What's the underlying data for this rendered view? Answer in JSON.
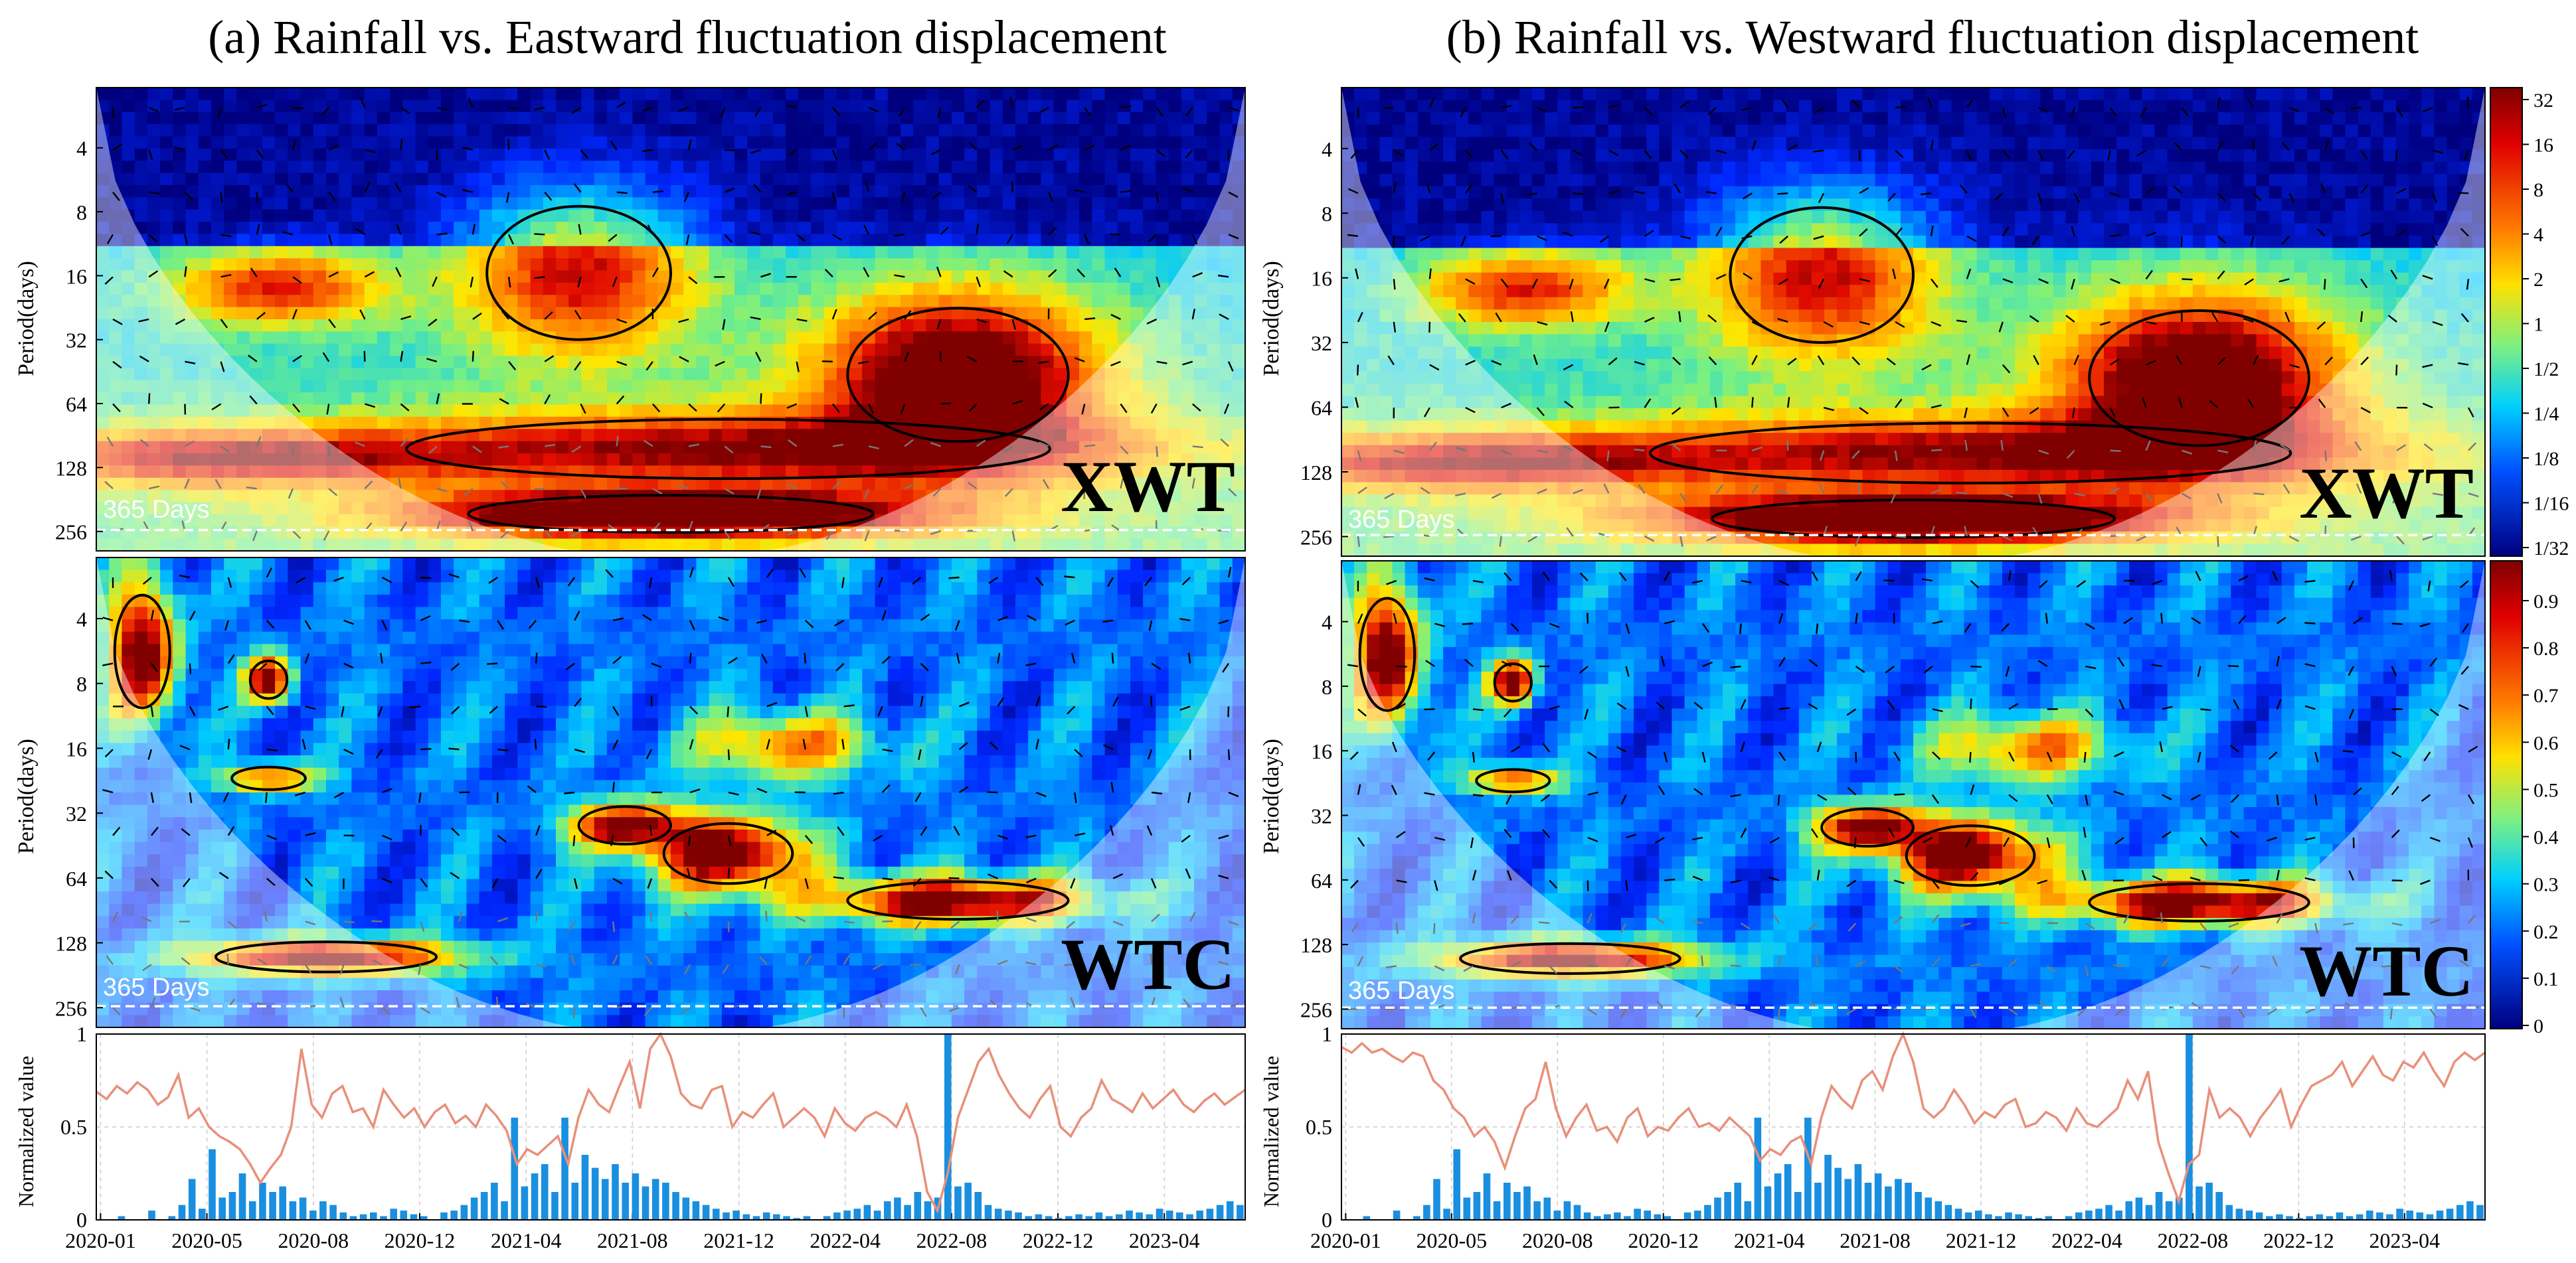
{
  "figure": {
    "panels": [
      {
        "title": "(a) Rainfall vs. Eastward fluctuation displacement",
        "xwt_label": "XWT",
        "wtc_label": "WTC",
        "marker_label": "365 Days",
        "ylabel_period": "Period(days)",
        "ylabel_norm": "Normalized value"
      },
      {
        "title": "(b) Rainfall vs. Westward fluctuation displacement",
        "xwt_label": "XWT",
        "wtc_label": "WTC",
        "marker_label": "365 Days",
        "ylabel_period": "Period(days)",
        "ylabel_norm": "Normalized value"
      }
    ],
    "period_ticks": [
      "4",
      "8",
      "16",
      "32",
      "64",
      "128",
      "256"
    ],
    "norm_ticks": [
      "0",
      "0.5",
      "1"
    ],
    "date_ticks": [
      "2020-01",
      "2020-05",
      "2020-08",
      "2020-12",
      "2021-04",
      "2021-08",
      "2021-12",
      "2022-04",
      "2022-08",
      "2022-12",
      "2023-04"
    ],
    "colorbar_xwt_ticks": [
      "32",
      "16",
      "8",
      "4",
      "2",
      "1",
      "1/2",
      "1/4",
      "1/8",
      "1/16",
      "1/32"
    ],
    "colorbar_wtc_ticks": [
      "0.9",
      "0.8",
      "0.7",
      "0.6",
      "0.5",
      "0.4",
      "0.3",
      "0.2",
      "0.1",
      "0"
    ],
    "colors": {
      "rainfall_bars": "#1a8fe0",
      "displacement_line": "#e8907a",
      "contour": "#000000",
      "coi_fill": "#ffffff",
      "marker_line": "#ffffff"
    }
  },
  "chart_data": [
    {
      "type": "line",
      "panel": "a-bottom",
      "x_label": "",
      "y_label": "Normalized value",
      "x_ticks": [
        "2020-01",
        "2020-05",
        "2020-08",
        "2020-12",
        "2021-04",
        "2021-08",
        "2021-12",
        "2022-04",
        "2022-08",
        "2022-12",
        "2023-04"
      ],
      "ylim": [
        0,
        1
      ],
      "series": [
        {
          "style": "line",
          "values": [
            0.69,
            0.65,
            0.72,
            0.68,
            0.74,
            0.7,
            0.62,
            0.66,
            0.78,
            0.55,
            0.6,
            0.5,
            0.45,
            0.42,
            0.38,
            0.3,
            0.2,
            0.28,
            0.35,
            0.5,
            0.92,
            0.62,
            0.55,
            0.68,
            0.72,
            0.58,
            0.6,
            0.5,
            0.7,
            0.62,
            0.55,
            0.6,
            0.5,
            0.58,
            0.62,
            0.52,
            0.56,
            0.5,
            0.62,
            0.56,
            0.48,
            0.3,
            0.38,
            0.35,
            0.4,
            0.45,
            0.3,
            0.55,
            0.7,
            0.62,
            0.58,
            0.72,
            0.85,
            0.6,
            0.92,
            1.0,
            0.88,
            0.68,
            0.62,
            0.6,
            0.7,
            0.72,
            0.5,
            0.58,
            0.55,
            0.62,
            0.68,
            0.5,
            0.55,
            0.6,
            0.55,
            0.45,
            0.6,
            0.52,
            0.48,
            0.55,
            0.58,
            0.55,
            0.5,
            0.62,
            0.45,
            0.15,
            0.05,
            0.25,
            0.55,
            0.7,
            0.85,
            0.92,
            0.78,
            0.68,
            0.6,
            0.55,
            0.65,
            0.72,
            0.5,
            0.45,
            0.55,
            0.6,
            0.75,
            0.65,
            0.62,
            0.58,
            0.68,
            0.6,
            0.65,
            0.7,
            0.62,
            0.58,
            0.64,
            0.68,
            0.62,
            0.66,
            0.7
          ]
        },
        {
          "style": "bar",
          "values": [
            0,
            0,
            0.02,
            0,
            0,
            0.05,
            0,
            0.02,
            0.08,
            0.22,
            0.06,
            0.38,
            0.12,
            0.15,
            0.25,
            0.1,
            0.2,
            0.15,
            0.18,
            0.1,
            0.12,
            0.05,
            0.1,
            0.08,
            0.04,
            0.02,
            0.03,
            0.04,
            0.02,
            0.06,
            0.05,
            0.03,
            0.02,
            0,
            0.04,
            0.05,
            0.08,
            0.12,
            0.15,
            0.2,
            0.1,
            0.55,
            0.18,
            0.25,
            0.3,
            0.15,
            0.55,
            0.2,
            0.35,
            0.28,
            0.22,
            0.3,
            0.2,
            0.25,
            0.18,
            0.22,
            0.2,
            0.15,
            0.12,
            0.1,
            0.08,
            0.06,
            0.04,
            0.05,
            0.03,
            0.02,
            0.04,
            0.03,
            0.02,
            0.01,
            0.02,
            0,
            0.02,
            0.04,
            0.05,
            0.06,
            0.08,
            0.05,
            0.1,
            0.12,
            0.08,
            0.15,
            0.1,
            0.12,
            1.0,
            0.18,
            0.2,
            0.15,
            0.08,
            0.06,
            0.05,
            0.04,
            0.02,
            0.03,
            0.02,
            0.01,
            0.02,
            0.03,
            0.02,
            0.04,
            0.02,
            0.03,
            0.05,
            0.04,
            0.03,
            0.06,
            0.05,
            0.04,
            0.03,
            0.05,
            0.06,
            0.08,
            0.1,
            0.08
          ]
        }
      ]
    },
    {
      "type": "line",
      "panel": "b-bottom",
      "x_label": "",
      "y_label": "Normalized value",
      "x_ticks": [
        "2020-01",
        "2020-05",
        "2020-08",
        "2020-12",
        "2021-04",
        "2021-08",
        "2021-12",
        "2022-04",
        "2022-08",
        "2022-12",
        "2023-04"
      ],
      "ylim": [
        0,
        1
      ],
      "series": [
        {
          "style": "line",
          "values": [
            0.93,
            0.9,
            0.95,
            0.9,
            0.92,
            0.88,
            0.85,
            0.9,
            0.88,
            0.75,
            0.7,
            0.6,
            0.55,
            0.45,
            0.5,
            0.42,
            0.28,
            0.45,
            0.6,
            0.65,
            0.85,
            0.6,
            0.45,
            0.55,
            0.62,
            0.48,
            0.5,
            0.42,
            0.55,
            0.6,
            0.45,
            0.5,
            0.48,
            0.55,
            0.6,
            0.5,
            0.52,
            0.48,
            0.55,
            0.5,
            0.45,
            0.32,
            0.38,
            0.35,
            0.42,
            0.45,
            0.3,
            0.55,
            0.72,
            0.65,
            0.6,
            0.75,
            0.8,
            0.7,
            0.88,
            1.0,
            0.85,
            0.6,
            0.55,
            0.6,
            0.7,
            0.62,
            0.52,
            0.58,
            0.55,
            0.62,
            0.65,
            0.5,
            0.52,
            0.58,
            0.55,
            0.48,
            0.6,
            0.52,
            0.5,
            0.55,
            0.6,
            0.75,
            0.65,
            0.8,
            0.42,
            0.25,
            0.1,
            0.3,
            0.35,
            0.7,
            0.55,
            0.6,
            0.55,
            0.45,
            0.55,
            0.62,
            0.7,
            0.5,
            0.62,
            0.72,
            0.75,
            0.78,
            0.85,
            0.72,
            0.8,
            0.88,
            0.78,
            0.75,
            0.85,
            0.82,
            0.9,
            0.8,
            0.72,
            0.85,
            0.9,
            0.86,
            0.9
          ]
        },
        {
          "style": "bar",
          "values": [
            0,
            0,
            0.02,
            0,
            0,
            0.05,
            0,
            0.02,
            0.08,
            0.22,
            0.06,
            0.38,
            0.12,
            0.15,
            0.25,
            0.1,
            0.2,
            0.15,
            0.18,
            0.1,
            0.12,
            0.05,
            0.1,
            0.08,
            0.04,
            0.02,
            0.03,
            0.04,
            0.02,
            0.06,
            0.05,
            0.03,
            0.02,
            0,
            0.04,
            0.05,
            0.08,
            0.12,
            0.15,
            0.2,
            0.1,
            0.55,
            0.18,
            0.25,
            0.3,
            0.15,
            0.55,
            0.2,
            0.35,
            0.28,
            0.22,
            0.3,
            0.2,
            0.25,
            0.18,
            0.22,
            0.2,
            0.15,
            0.12,
            0.1,
            0.08,
            0.06,
            0.04,
            0.05,
            0.03,
            0.02,
            0.04,
            0.03,
            0.02,
            0.01,
            0.02,
            0,
            0.02,
            0.04,
            0.05,
            0.06,
            0.08,
            0.05,
            0.1,
            0.12,
            0.08,
            0.15,
            0.1,
            0.12,
            1.0,
            0.18,
            0.2,
            0.15,
            0.08,
            0.06,
            0.05,
            0.04,
            0.02,
            0.03,
            0.02,
            0.01,
            0.02,
            0.03,
            0.02,
            0.04,
            0.02,
            0.03,
            0.05,
            0.04,
            0.03,
            0.06,
            0.05,
            0.04,
            0.03,
            0.05,
            0.06,
            0.08,
            0.1,
            0.08
          ]
        }
      ]
    }
  ]
}
